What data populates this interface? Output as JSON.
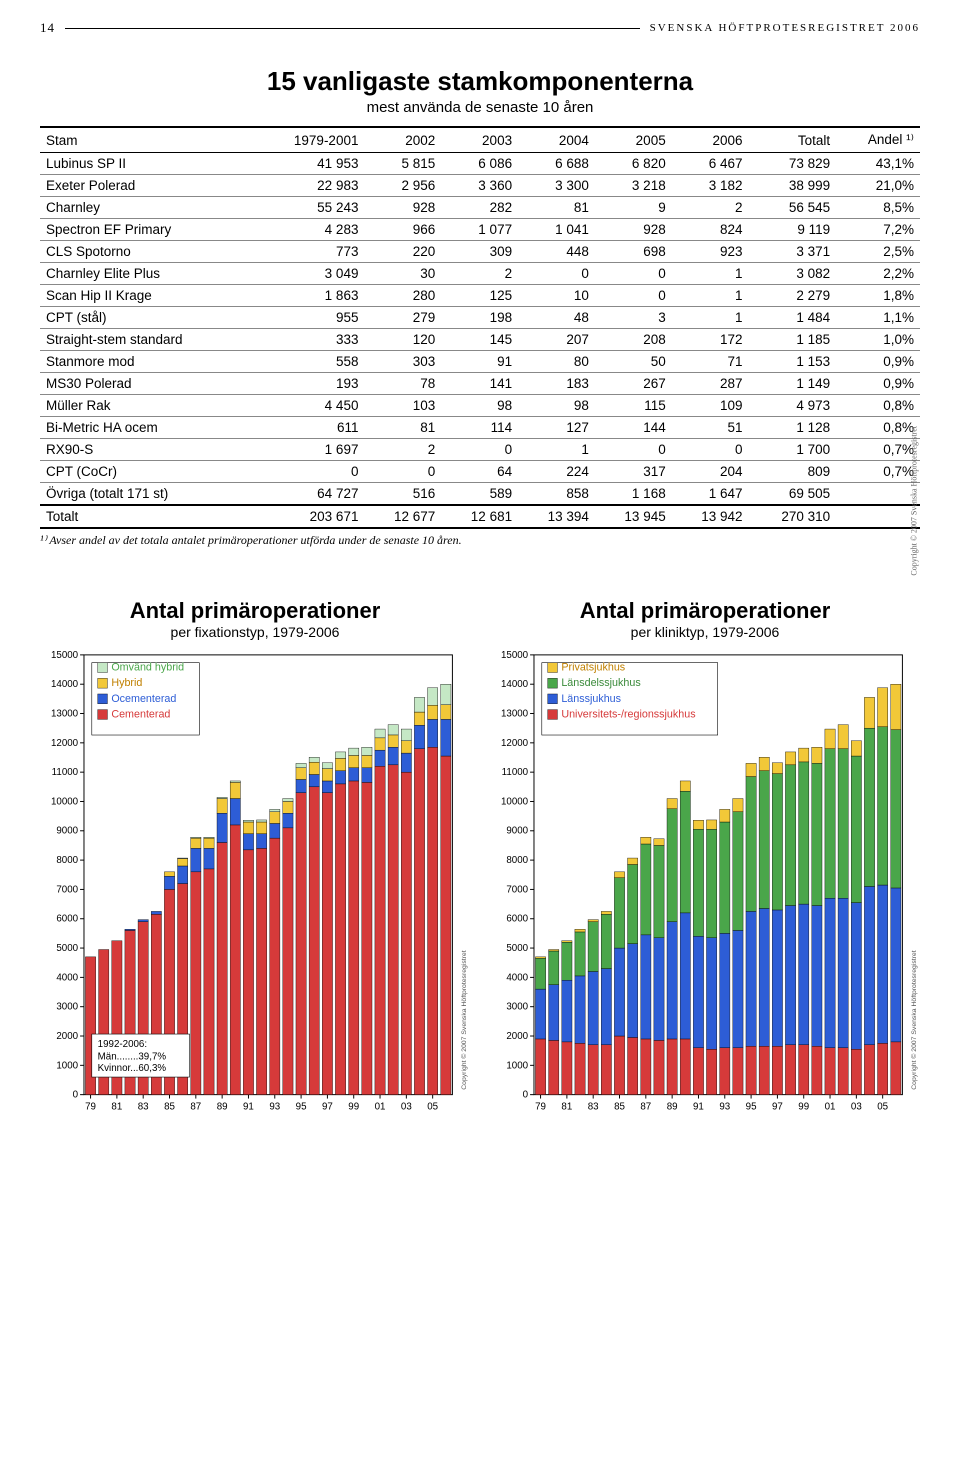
{
  "page_number": "14",
  "header_text": "SVENSKA HÖFTPROTESREGISTRET 2006",
  "table": {
    "title": "15 vanligaste stamkomponenterna",
    "subtitle": "mest använda de senaste 10 åren",
    "columns": [
      "Stam",
      "1979-2001",
      "2002",
      "2003",
      "2004",
      "2005",
      "2006",
      "Totalt",
      "Andel ¹⁾"
    ],
    "rows": [
      [
        "Lubinus SP II",
        "41 953",
        "5 815",
        "6 086",
        "6 688",
        "6 820",
        "6 467",
        "73 829",
        "43,1%"
      ],
      [
        "Exeter Polerad",
        "22 983",
        "2 956",
        "3 360",
        "3 300",
        "3 218",
        "3 182",
        "38 999",
        "21,0%"
      ],
      [
        "Charnley",
        "55 243",
        "928",
        "282",
        "81",
        "9",
        "2",
        "56 545",
        "8,5%"
      ],
      [
        "Spectron EF Primary",
        "4 283",
        "966",
        "1 077",
        "1 041",
        "928",
        "824",
        "9 119",
        "7,2%"
      ],
      [
        "CLS Spotorno",
        "773",
        "220",
        "309",
        "448",
        "698",
        "923",
        "3 371",
        "2,5%"
      ],
      [
        "Charnley Elite Plus",
        "3 049",
        "30",
        "2",
        "0",
        "0",
        "1",
        "3 082",
        "2,2%"
      ],
      [
        "Scan Hip II Krage",
        "1 863",
        "280",
        "125",
        "10",
        "0",
        "1",
        "2 279",
        "1,8%"
      ],
      [
        "CPT (stål)",
        "955",
        "279",
        "198",
        "48",
        "3",
        "1",
        "1 484",
        "1,1%"
      ],
      [
        "Straight-stem standard",
        "333",
        "120",
        "145",
        "207",
        "208",
        "172",
        "1 185",
        "1,0%"
      ],
      [
        "Stanmore mod",
        "558",
        "303",
        "91",
        "80",
        "50",
        "71",
        "1 153",
        "0,9%"
      ],
      [
        "MS30 Polerad",
        "193",
        "78",
        "141",
        "183",
        "267",
        "287",
        "1 149",
        "0,9%"
      ],
      [
        "Müller Rak",
        "4 450",
        "103",
        "98",
        "98",
        "115",
        "109",
        "4 973",
        "0,8%"
      ],
      [
        "Bi-Metric HA ocem",
        "611",
        "81",
        "114",
        "127",
        "144",
        "51",
        "1 128",
        "0,8%"
      ],
      [
        "RX90-S",
        "1 697",
        "2",
        "0",
        "1",
        "0",
        "0",
        "1 700",
        "0,7%"
      ],
      [
        "CPT (CoCr)",
        "0",
        "0",
        "64",
        "224",
        "317",
        "204",
        "809",
        "0,7%"
      ]
    ],
    "summary_rows": [
      [
        "Övriga (totalt 171 st)",
        "64 727",
        "516",
        "589",
        "858",
        "1 168",
        "1 647",
        "69 505",
        ""
      ],
      [
        "Totalt",
        "203 671",
        "12 677",
        "12 681",
        "13 394",
        "13 945",
        "13 942",
        "270 310",
        ""
      ]
    ],
    "footnote": "¹⁾ Avser andel av det totala antalet primäroperationer utförda under de senaste 10 åren.",
    "copyright": "Copyright © 2007 Svenska Höftprotesregistret"
  },
  "chart_shared": {
    "y_max": 15000,
    "y_tick_step": 1000,
    "x_start": 79,
    "x_end": 6,
    "x_tick_step": 2,
    "plot_bg": "#ffffff",
    "border_color": "#000000",
    "tick_font_size": 10,
    "copyright": "Copyright © 2007 Svenska Höftprotesregistret"
  },
  "chart_left": {
    "title": "Antal primäroperationer",
    "subtitle": "per fixationstyp, 1979-2006",
    "legend": [
      {
        "label": "Omvänd hybrid",
        "color": "#c5e8c5",
        "text": "#4aa64a"
      },
      {
        "label": "Hybrid",
        "color": "#f2c838",
        "text": "#c08000"
      },
      {
        "label": "Ocementerad",
        "color": "#2d5dd6",
        "text": "#2d5dd6"
      },
      {
        "label": "Cementerad",
        "color": "#d63a3a",
        "text": "#d63a3a"
      }
    ],
    "infobox": {
      "title": "1992-2006:",
      "lines": [
        "Män........39,7%",
        "Kvinnor...60,3%"
      ]
    },
    "series": {
      "cementerad": [
        4700,
        4950,
        5250,
        5600,
        5900,
        6150,
        7000,
        7200,
        7600,
        7700,
        8600,
        9200,
        8350,
        8400,
        8750,
        9100,
        10300,
        10500,
        10300,
        10600,
        10700,
        10650,
        11200,
        11250,
        11000,
        11800,
        11850,
        11550
      ],
      "ocementerad": [
        0,
        0,
        0,
        40,
        70,
        100,
        450,
        600,
        800,
        700,
        1000,
        900,
        550,
        500,
        500,
        500,
        450,
        420,
        400,
        450,
        450,
        500,
        550,
        600,
        650,
        800,
        950,
        1250
      ],
      "hybrid": [
        0,
        0,
        0,
        0,
        0,
        0,
        150,
        250,
        350,
        350,
        500,
        550,
        400,
        400,
        400,
        400,
        400,
        420,
        420,
        420,
        420,
        420,
        420,
        420,
        420,
        450,
        480,
        500
      ],
      "omvand": [
        0,
        0,
        0,
        0,
        0,
        0,
        0,
        20,
        30,
        30,
        40,
        50,
        60,
        70,
        80,
        100,
        150,
        170,
        200,
        220,
        250,
        280,
        300,
        350,
        400,
        500,
        600,
        700
      ]
    },
    "colors": {
      "cementerad": "#d63a3a",
      "ocementerad": "#2d5dd6",
      "hybrid": "#f2c838",
      "omvand": "#c5e8c5"
    }
  },
  "chart_right": {
    "title": "Antal primäroperationer",
    "subtitle": "per kliniktyp, 1979-2006",
    "legend": [
      {
        "label": "Privatsjukhus",
        "color": "#f2c838",
        "text": "#c08000"
      },
      {
        "label": "Länsdelssjukhus",
        "color": "#4aa64a",
        "text": "#3a8a3a"
      },
      {
        "label": "Länssjukhus",
        "color": "#2d5dd6",
        "text": "#2d5dd6"
      },
      {
        "label": "Universitets-/regionssjukhus",
        "color": "#d63a3a",
        "text": "#d63a3a"
      }
    ],
    "series": {
      "univ": [
        1900,
        1850,
        1800,
        1750,
        1700,
        1700,
        2000,
        1950,
        1900,
        1850,
        1900,
        1900,
        1600,
        1550,
        1600,
        1600,
        1650,
        1650,
        1650,
        1700,
        1700,
        1650,
        1600,
        1600,
        1550,
        1700,
        1750,
        1800
      ],
      "lans": [
        1700,
        1900,
        2100,
        2300,
        2500,
        2600,
        3000,
        3200,
        3550,
        3500,
        4000,
        4300,
        3800,
        3800,
        3900,
        4000,
        4600,
        4700,
        4650,
        4750,
        4800,
        4800,
        5100,
        5100,
        5000,
        5400,
        5400,
        5250
      ],
      "lansdel": [
        1050,
        1150,
        1300,
        1500,
        1700,
        1850,
        2400,
        2700,
        3100,
        3150,
        3850,
        4150,
        3650,
        3700,
        3800,
        4050,
        4600,
        4700,
        4650,
        4800,
        4850,
        4850,
        5100,
        5100,
        5000,
        5400,
        5400,
        5400
      ],
      "privat": [
        50,
        50,
        50,
        90,
        70,
        100,
        200,
        220,
        230,
        230,
        350,
        350,
        310,
        320,
        430,
        450,
        450,
        460,
        370,
        440,
        470,
        550,
        670,
        820,
        520,
        1050,
        1330,
        1550
      ]
    },
    "colors": {
      "univ": "#d63a3a",
      "lans": "#2d5dd6",
      "lansdel": "#4aa64a",
      "privat": "#f2c838"
    }
  }
}
